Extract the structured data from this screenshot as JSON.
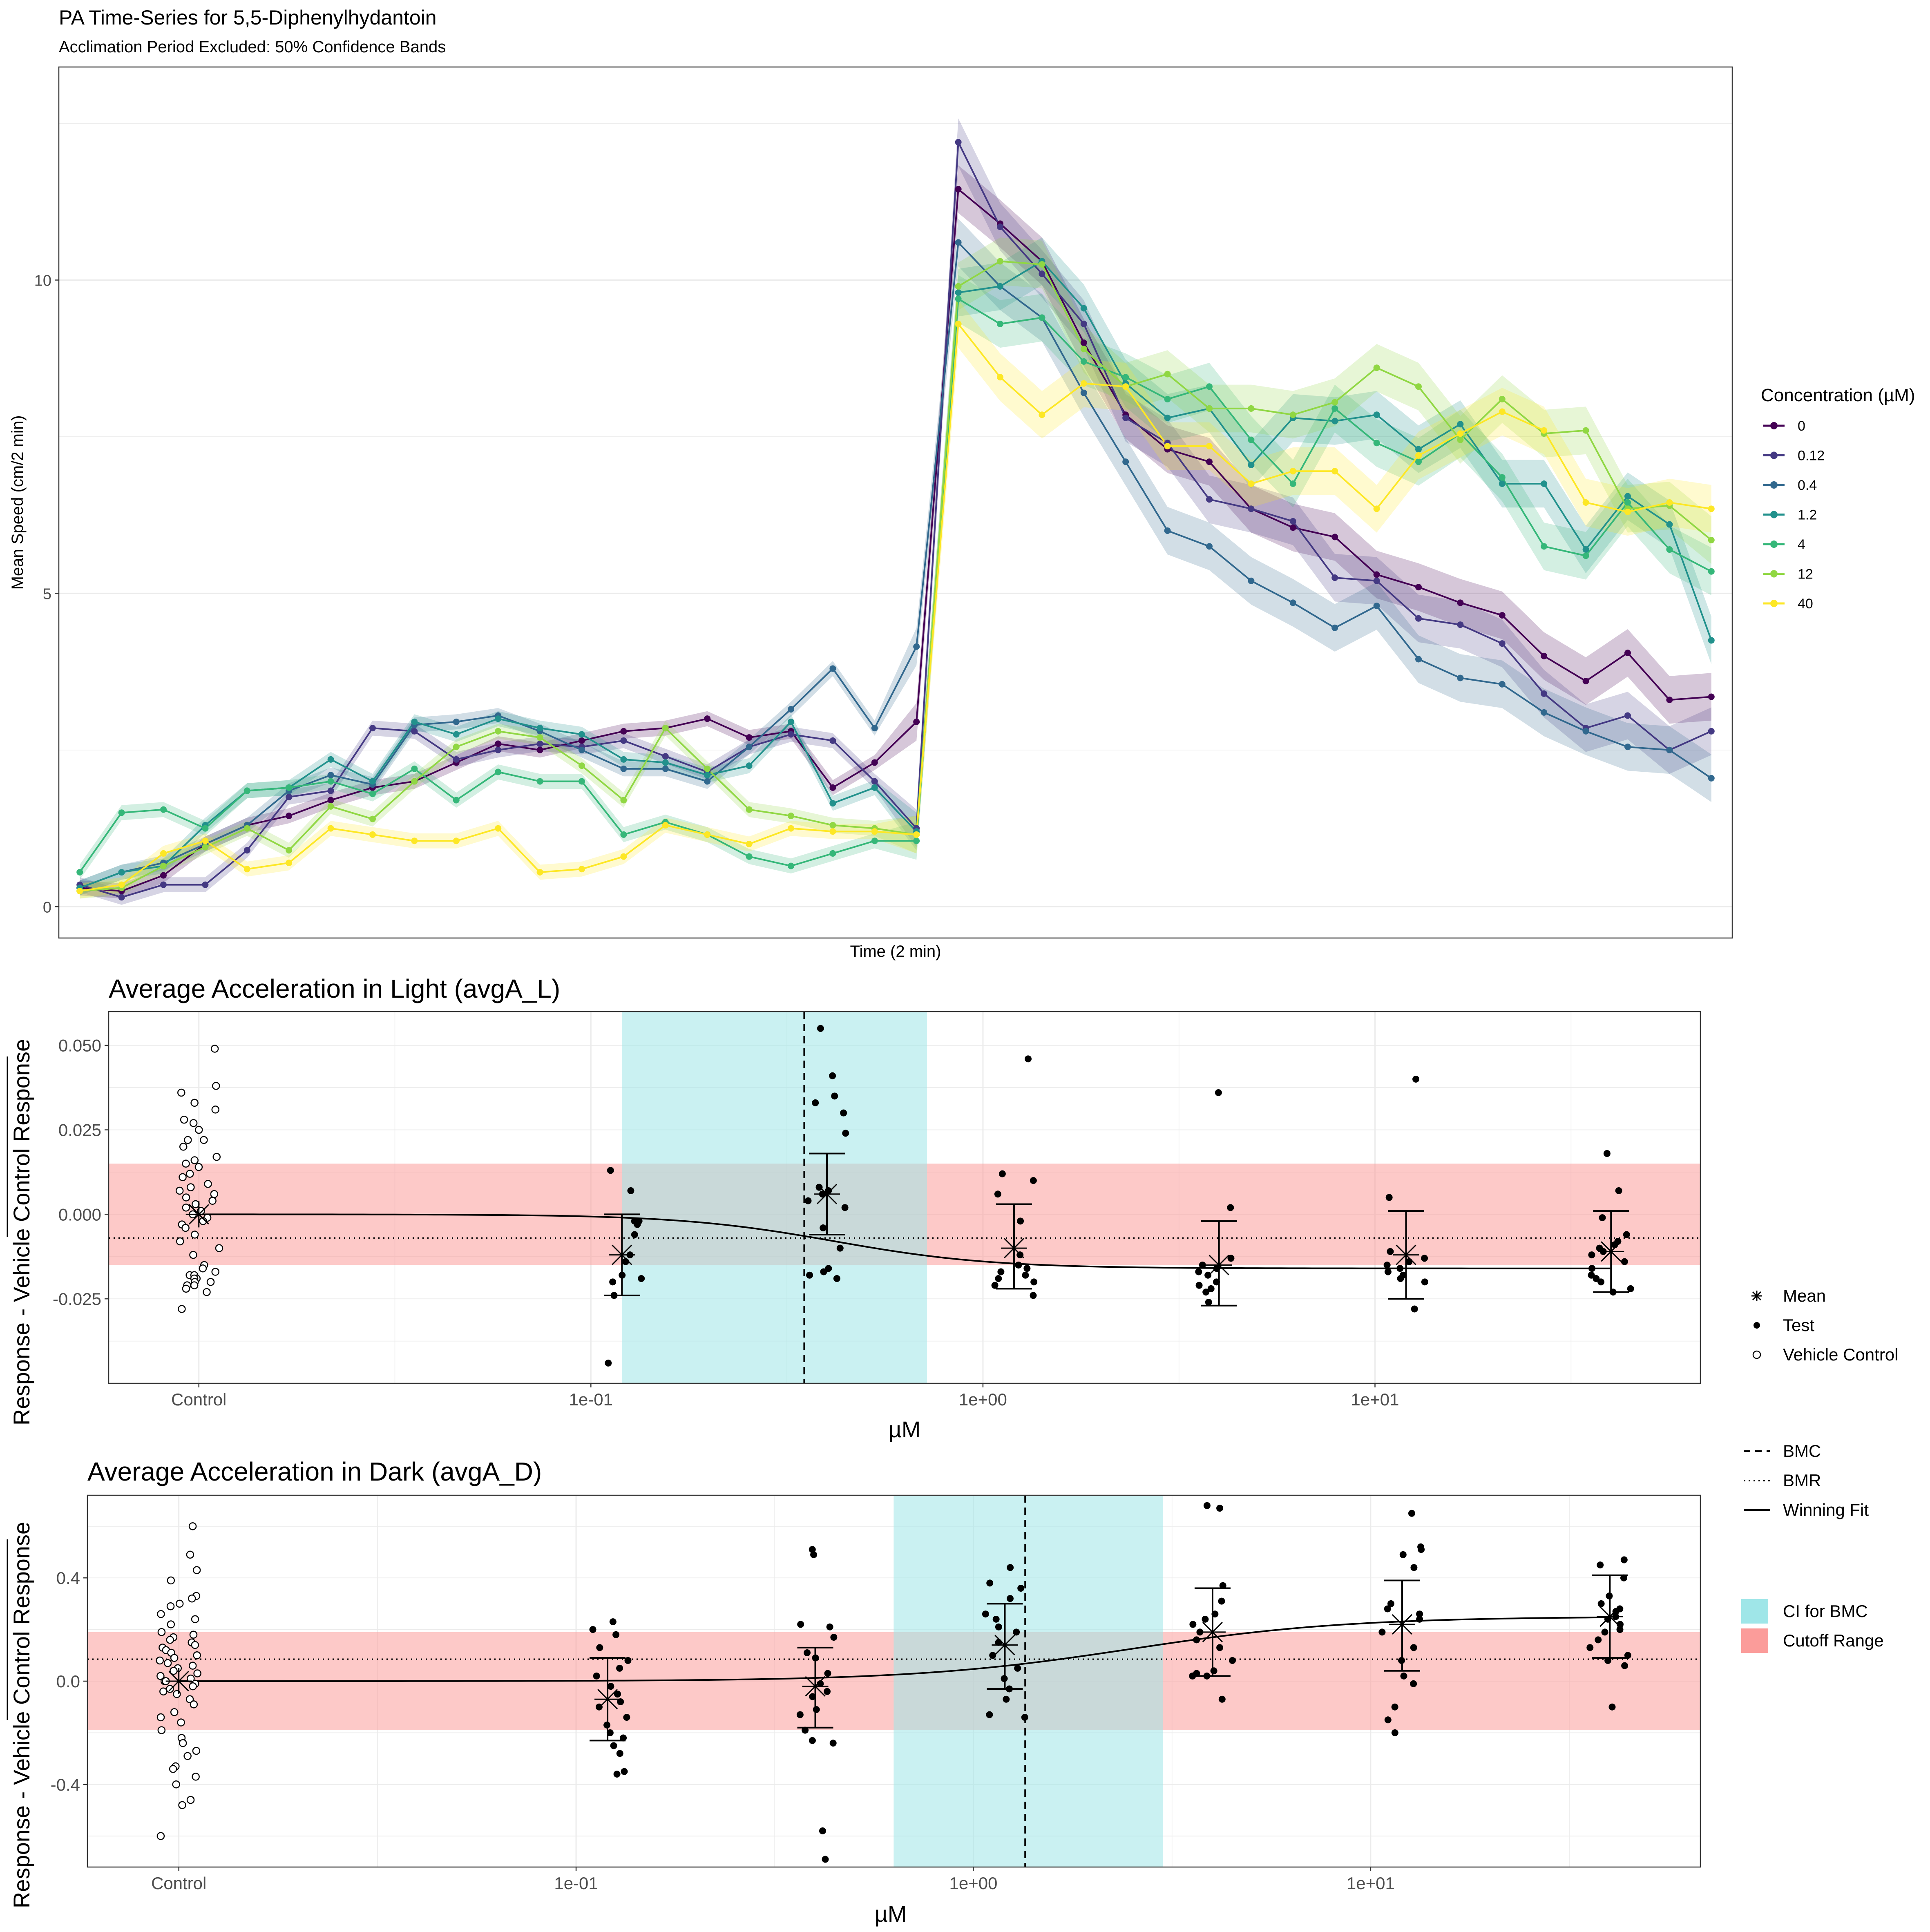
{
  "colors": {
    "series": [
      "#440154",
      "#443983",
      "#31688e",
      "#21918c",
      "#35b779",
      "#90d743",
      "#fde725"
    ],
    "ci_band": "#9fe6e8",
    "cutoff_band": "#fb9c9a",
    "axis_text": "#4d4d4d",
    "grid": "#ebebeb"
  },
  "chart_data": [
    {
      "type": "line",
      "title": "PA Time-Series for 5,5-Diphenylhydantoin",
      "subtitle": "Acclimation Period Excluded: 50% Confidence Bands",
      "xlabel": "Time (2 min)",
      "ylabel": "Mean Speed (cm/2 min)",
      "xlim": [
        0.5,
        40.5
      ],
      "ylim": [
        -0.5,
        13.4
      ],
      "yticks": [
        0,
        5,
        10
      ],
      "ytick_labels": [
        "0",
        "5",
        "10"
      ],
      "grid": true,
      "legend": {
        "title": "Concentration (µM)",
        "placement": "right",
        "entries": [
          "0",
          "0.12",
          "0.4",
          "1.2",
          "4",
          "12",
          "40"
        ]
      },
      "x": [
        1,
        2,
        3,
        4,
        5,
        6,
        7,
        8,
        9,
        10,
        11,
        12,
        13,
        14,
        15,
        16,
        17,
        18,
        19,
        20,
        21,
        22,
        23,
        24,
        25,
        26,
        27,
        28,
        29,
        30,
        31,
        32,
        33,
        34,
        35,
        36,
        37,
        38,
        39,
        40
      ],
      "band_halfwidth": [
        0.12,
        0.12,
        0.12,
        0.12,
        0.12,
        0.12,
        0.12,
        0.12,
        0.12,
        0.12,
        0.12,
        0.12,
        0.12,
        0.12,
        0.12,
        0.12,
        0.12,
        0.12,
        0.12,
        0.12,
        0.3,
        0.38,
        0.38,
        0.38,
        0.38,
        0.38,
        0.38,
        0.38,
        0.38,
        0.38,
        0.38,
        0.38,
        0.38,
        0.38,
        0.38,
        0.38,
        0.38,
        0.38,
        0.38,
        0.38
      ],
      "series": [
        {
          "name": "0",
          "values": [
            0.3,
            0.25,
            0.5,
            1.0,
            1.3,
            1.45,
            1.7,
            1.9,
            2.0,
            2.3,
            2.6,
            2.5,
            2.65,
            2.8,
            2.85,
            3.0,
            2.7,
            2.8,
            1.9,
            2.3,
            2.95,
            11.45,
            10.9,
            10.3,
            9.0,
            7.85,
            7.3,
            7.1,
            6.35,
            6.05,
            5.9,
            5.3,
            5.1,
            4.85,
            4.65,
            4.0,
            3.6,
            4.05,
            3.3,
            3.35
          ]
        },
        {
          "name": "0.12",
          "values": [
            0.35,
            0.15,
            0.35,
            0.35,
            0.9,
            1.75,
            1.85,
            2.85,
            2.8,
            2.35,
            2.5,
            2.6,
            2.55,
            2.65,
            2.4,
            2.15,
            2.55,
            2.75,
            2.65,
            2.0,
            1.25,
            12.2,
            10.85,
            10.1,
            9.3,
            7.8,
            7.4,
            6.5,
            6.35,
            6.15,
            5.25,
            5.2,
            4.6,
            4.5,
            4.2,
            3.4,
            2.85,
            3.05,
            2.5,
            2.8
          ]
        },
        {
          "name": "0.4",
          "values": [
            0.3,
            0.55,
            0.7,
            1.0,
            1.3,
            1.85,
            2.1,
            1.95,
            2.9,
            2.95,
            3.05,
            2.8,
            2.5,
            2.2,
            2.2,
            2.0,
            2.55,
            3.15,
            3.8,
            2.85,
            4.15,
            10.6,
            9.9,
            9.4,
            8.2,
            7.1,
            6.0,
            5.75,
            5.2,
            4.85,
            4.45,
            4.8,
            3.95,
            3.65,
            3.55,
            3.1,
            2.8,
            2.55,
            2.5,
            2.05
          ]
        },
        {
          "name": "1.2",
          "values": [
            0.3,
            0.55,
            0.65,
            1.3,
            1.85,
            1.9,
            2.35,
            2.0,
            2.95,
            2.75,
            3.0,
            2.85,
            2.75,
            2.35,
            2.3,
            2.1,
            2.25,
            2.95,
            1.65,
            1.9,
            1.2,
            9.8,
            9.9,
            10.3,
            9.55,
            8.35,
            7.8,
            7.95,
            7.05,
            7.8,
            7.75,
            7.85,
            7.3,
            7.7,
            6.75,
            6.75,
            5.7,
            6.55,
            6.1,
            4.25
          ]
        },
        {
          "name": "4",
          "values": [
            0.55,
            1.5,
            1.55,
            1.25,
            1.85,
            1.9,
            2.0,
            1.8,
            2.2,
            1.7,
            2.15,
            2.0,
            2.0,
            1.15,
            1.35,
            1.15,
            0.8,
            0.65,
            0.85,
            1.05,
            1.05,
            9.7,
            9.3,
            9.4,
            8.7,
            8.45,
            8.1,
            8.3,
            7.45,
            6.75,
            7.95,
            7.4,
            7.1,
            7.55,
            6.85,
            5.75,
            5.6,
            6.45,
            5.7,
            5.35
          ]
        },
        {
          "name": "12",
          "values": [
            0.25,
            0.3,
            0.65,
            0.95,
            1.25,
            0.9,
            1.6,
            1.4,
            2.0,
            2.55,
            2.8,
            2.7,
            2.25,
            1.7,
            2.85,
            2.2,
            1.55,
            1.45,
            1.3,
            1.25,
            1.15,
            9.9,
            10.3,
            10.25,
            8.9,
            8.3,
            8.5,
            7.95,
            7.95,
            7.85,
            8.05,
            8.6,
            8.3,
            7.45,
            8.1,
            7.55,
            7.6,
            6.35,
            6.4,
            5.85
          ]
        },
        {
          "name": "40",
          "values": [
            0.25,
            0.35,
            0.85,
            1.05,
            0.6,
            0.7,
            1.25,
            1.15,
            1.05,
            1.05,
            1.25,
            0.55,
            0.6,
            0.8,
            1.3,
            1.15,
            1.0,
            1.25,
            1.2,
            1.2,
            1.15,
            9.3,
            8.45,
            7.85,
            8.35,
            8.3,
            7.35,
            7.35,
            6.75,
            6.95,
            6.95,
            6.35,
            7.2,
            7.55,
            7.9,
            7.6,
            6.45,
            6.3,
            6.45,
            6.35
          ]
        }
      ]
    },
    {
      "type": "scatter",
      "title": "Average Acceleration in Light (avgA_L)",
      "xlabel": "µM",
      "ylabel": "Response - Vehicle Control Response",
      "xlim": [
        -2.23,
        1.83
      ],
      "ylim": [
        -0.05,
        0.06
      ],
      "xticks": [
        "Control",
        "1e-01",
        "1e+00",
        "1e+01"
      ],
      "yticks": [
        "-0.025",
        "0.000",
        "0.025",
        "0.050"
      ],
      "grid": true,
      "control_position": -2.0,
      "concentrations": [
        "0.12",
        "0.4",
        "1.2",
        "4",
        "12",
        "40"
      ],
      "bmc": 0.35,
      "ci_for_bmc": [
        0.12,
        0.72
      ],
      "bmr": -0.007,
      "cutoff_range": [
        -0.015,
        0.015
      ],
      "winning_fit": {
        "kind": "hill",
        "bottom": 0.0,
        "top": -0.016,
        "ec50": 0.42,
        "hill_n": 2.2
      },
      "vehicle_control": [
        0.049,
        0.038,
        0.036,
        0.033,
        0.031,
        0.028,
        0.027,
        0.025,
        0.022,
        0.022,
        0.02,
        0.017,
        0.016,
        0.015,
        0.014,
        0.012,
        0.011,
        0.009,
        0.008,
        0.008,
        0.007,
        0.006,
        0.005,
        0.004,
        0.003,
        0.002,
        0.001,
        0.0,
        -0.001,
        -0.002,
        -0.003,
        -0.004,
        -0.006,
        -0.008,
        -0.01,
        -0.012,
        -0.015,
        -0.016,
        -0.017,
        -0.018,
        -0.018,
        -0.019,
        -0.019,
        -0.02,
        -0.02,
        -0.021,
        -0.021,
        -0.022,
        -0.023,
        -0.028
      ],
      "test": [
        {
          "concentration": "0.12",
          "values": [
            0.013,
            0.007,
            -0.002,
            -0.002,
            -0.003,
            -0.006,
            -0.012,
            -0.014,
            -0.018,
            -0.019,
            -0.02,
            -0.024,
            -0.044
          ],
          "mean": -0.012,
          "ci": [
            -0.024,
            0.0
          ]
        },
        {
          "concentration": "0.4",
          "values": [
            0.055,
            0.041,
            0.035,
            0.033,
            0.03,
            0.024,
            0.008,
            0.007,
            0.006,
            0.004,
            0.002,
            -0.004,
            -0.01,
            -0.016,
            -0.017,
            -0.018,
            -0.019
          ],
          "mean": 0.006,
          "ci": [
            -0.006,
            0.018
          ]
        },
        {
          "concentration": "1.2",
          "values": [
            0.046,
            0.012,
            0.01,
            0.006,
            -0.002,
            -0.012,
            -0.015,
            -0.016,
            -0.017,
            -0.018,
            -0.019,
            -0.02,
            -0.021,
            -0.024
          ],
          "mean": -0.01,
          "ci": [
            -0.022,
            0.003
          ]
        },
        {
          "concentration": "4",
          "values": [
            0.036,
            0.002,
            -0.013,
            -0.015,
            -0.016,
            -0.017,
            -0.018,
            -0.02,
            -0.021,
            -0.022,
            -0.023,
            -0.026
          ],
          "mean": -0.015,
          "ci": [
            -0.027,
            -0.002
          ]
        },
        {
          "concentration": "12",
          "values": [
            0.04,
            0.005,
            -0.011,
            -0.013,
            -0.014,
            -0.015,
            -0.016,
            -0.017,
            -0.018,
            -0.019,
            -0.02,
            -0.028
          ],
          "mean": -0.012,
          "ci": [
            -0.025,
            0.001
          ]
        },
        {
          "concentration": "40",
          "values": [
            0.018,
            0.007,
            -0.001,
            -0.006,
            -0.008,
            -0.009,
            -0.01,
            -0.011,
            -0.012,
            -0.014,
            -0.016,
            -0.018,
            -0.019,
            -0.02,
            -0.022,
            -0.023
          ],
          "mean": -0.011,
          "ci": [
            -0.023,
            0.001
          ]
        }
      ]
    },
    {
      "type": "scatter",
      "title": "Average Acceleration in Dark (avgA_D)",
      "xlabel": "µM",
      "ylabel": "Response - Vehicle Control Response",
      "xlim": [
        -2.23,
        1.83
      ],
      "ylim": [
        -0.72,
        0.72
      ],
      "xticks": [
        "Control",
        "1e-01",
        "1e+00",
        "1e+01"
      ],
      "yticks": [
        "-0.4",
        "0.0",
        "0.4"
      ],
      "grid": true,
      "control_position": -2.0,
      "concentrations": [
        "0.12",
        "0.4",
        "1.2",
        "4",
        "12",
        "40"
      ],
      "bmc": 1.35,
      "ci_for_bmc": [
        0.63,
        3.0
      ],
      "bmr": 0.085,
      "cutoff_range": [
        -0.19,
        0.19
      ],
      "winning_fit": {
        "kind": "hill",
        "bottom": 0.0,
        "top": 0.25,
        "ec50": 2.5,
        "hill_n": 1.6
      },
      "vehicle_control": [
        0.6,
        0.49,
        0.43,
        0.39,
        0.33,
        0.32,
        0.3,
        0.29,
        0.26,
        0.24,
        0.22,
        0.19,
        0.18,
        0.17,
        0.16,
        0.15,
        0.14,
        0.13,
        0.12,
        0.11,
        0.1,
        0.09,
        0.08,
        0.07,
        0.06,
        0.05,
        0.04,
        0.03,
        0.02,
        0.01,
        0.0,
        0.0,
        -0.01,
        -0.02,
        -0.03,
        -0.04,
        -0.05,
        -0.07,
        -0.09,
        -0.12,
        -0.14,
        -0.16,
        -0.19,
        -0.22,
        -0.24,
        -0.27,
        -0.29,
        -0.33,
        -0.34,
        -0.37,
        -0.4,
        -0.46,
        -0.48,
        -0.6
      ],
      "test": [
        {
          "concentration": "0.12",
          "values": [
            0.23,
            0.2,
            0.18,
            0.13,
            0.08,
            0.05,
            0.02,
            -0.02,
            -0.05,
            -0.08,
            -0.1,
            -0.14,
            -0.17,
            -0.2,
            -0.22,
            -0.25,
            -0.28,
            -0.35,
            -0.36
          ],
          "mean": -0.07,
          "ci": [
            -0.23,
            0.09
          ]
        },
        {
          "concentration": "0.4",
          "values": [
            0.51,
            0.49,
            0.22,
            0.21,
            0.17,
            0.11,
            0.09,
            0.03,
            -0.01,
            -0.04,
            -0.06,
            -0.11,
            -0.13,
            -0.19,
            -0.23,
            -0.24,
            -0.58,
            -0.69
          ],
          "mean": -0.02,
          "ci": [
            -0.18,
            0.13
          ]
        },
        {
          "concentration": "1.2",
          "values": [
            0.44,
            0.38,
            0.36,
            0.32,
            0.26,
            0.24,
            0.21,
            0.19,
            0.15,
            0.1,
            0.05,
            0.01,
            -0.03,
            -0.07,
            -0.13,
            -0.14
          ],
          "mean": 0.14,
          "ci": [
            -0.03,
            0.3
          ]
        },
        {
          "concentration": "4",
          "values": [
            0.68,
            0.67,
            0.37,
            0.31,
            0.26,
            0.24,
            0.22,
            0.19,
            0.16,
            0.13,
            0.08,
            0.04,
            0.03,
            0.02,
            0.02,
            -0.07
          ],
          "mean": 0.19,
          "ci": [
            0.02,
            0.36
          ]
        },
        {
          "concentration": "12",
          "values": [
            0.65,
            0.52,
            0.51,
            0.49,
            0.44,
            0.3,
            0.28,
            0.26,
            0.24,
            0.19,
            0.13,
            0.08,
            0.02,
            -0.01,
            -0.1,
            -0.15,
            -0.2
          ],
          "mean": 0.22,
          "ci": [
            0.04,
            0.39
          ]
        },
        {
          "concentration": "40",
          "values": [
            0.47,
            0.45,
            0.4,
            0.33,
            0.3,
            0.28,
            0.27,
            0.25,
            0.24,
            0.22,
            0.2,
            0.19,
            0.16,
            0.13,
            0.1,
            0.08,
            0.06,
            -0.1
          ],
          "mean": 0.25,
          "ci": [
            0.09,
            0.41
          ]
        }
      ]
    }
  ],
  "shared_legend": {
    "points": [
      {
        "glyph": "mean",
        "label": "Mean"
      },
      {
        "glyph": "test",
        "label": "Test"
      },
      {
        "glyph": "vehicle",
        "label": "Vehicle Control"
      }
    ],
    "lines": [
      {
        "style": "dashed",
        "label": "BMC"
      },
      {
        "style": "dotted",
        "label": "BMR"
      },
      {
        "style": "solid",
        "label": "Winning Fit"
      }
    ],
    "fills": [
      {
        "kind": "ci",
        "label": "CI for BMC"
      },
      {
        "kind": "cutoff",
        "label": "Cutoff Range"
      }
    ]
  }
}
